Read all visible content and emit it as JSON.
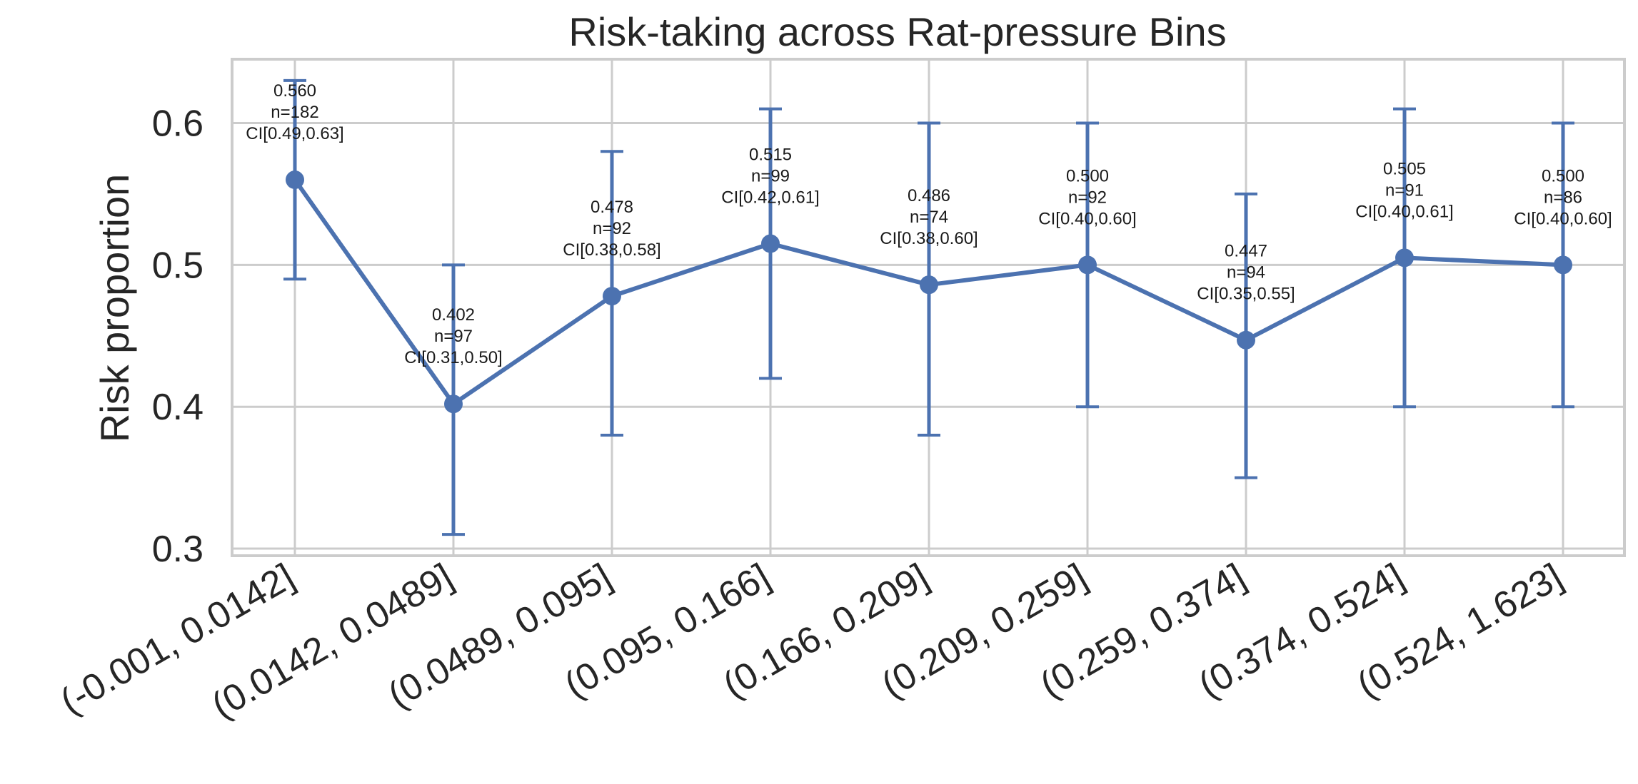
{
  "chart_data": {
    "type": "line",
    "title": "Risk-taking across Rat-pressure Bins",
    "xlabel": "",
    "ylabel": "Risk proportion",
    "ylim": [
      0.295,
      0.645
    ],
    "yticks": [
      0.3,
      0.4,
      0.5,
      0.6
    ],
    "ytick_labels": [
      "0.3",
      "0.4",
      "0.5",
      "0.6"
    ],
    "grid": true,
    "color": "#4c72b0",
    "categories": [
      "(-0.001, 0.0142]",
      "(0.0142, 0.0489]",
      "(0.0489, 0.095]",
      "(0.095, 0.166]",
      "(0.166, 0.209]",
      "(0.209, 0.259]",
      "(0.259, 0.374]",
      "(0.374, 0.524]",
      "(0.524, 1.623]"
    ],
    "values": [
      0.56,
      0.402,
      0.478,
      0.515,
      0.486,
      0.5,
      0.447,
      0.505,
      0.5
    ],
    "ci_low": [
      0.49,
      0.31,
      0.38,
      0.42,
      0.38,
      0.4,
      0.35,
      0.4,
      0.4
    ],
    "ci_high": [
      0.63,
      0.5,
      0.58,
      0.61,
      0.6,
      0.6,
      0.55,
      0.61,
      0.6
    ],
    "annotations": [
      [
        "0.560",
        "n=182",
        "CI[0.49,0.63]"
      ],
      [
        "0.402",
        "n=97",
        "CI[0.31,0.50]"
      ],
      [
        "0.478",
        "n=92",
        "CI[0.38,0.58]"
      ],
      [
        "0.515",
        "n=99",
        "CI[0.42,0.61]"
      ],
      [
        "0.486",
        "n=74",
        "CI[0.38,0.60]"
      ],
      [
        "0.500",
        "n=92",
        "CI[0.40,0.60]"
      ],
      [
        "0.447",
        "n=94",
        "CI[0.35,0.55]"
      ],
      [
        "0.505",
        "n=91",
        "CI[0.40,0.61]"
      ],
      [
        "0.500",
        "n=86",
        "CI[0.40,0.60]"
      ]
    ]
  }
}
